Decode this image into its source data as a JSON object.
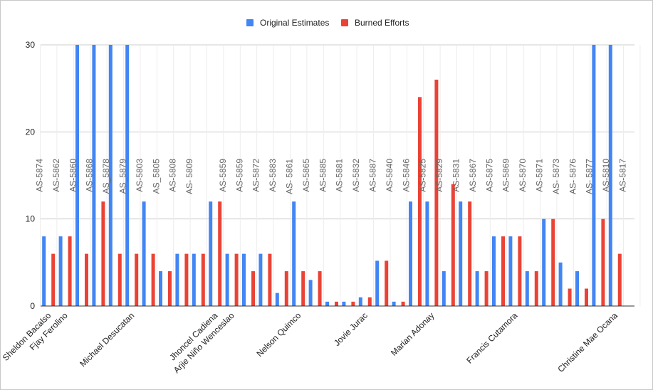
{
  "chart_data": {
    "type": "bar",
    "title": "",
    "xlabel": "",
    "ylabel": "",
    "ylim": [
      0,
      30
    ],
    "yticks": [
      0,
      10,
      20,
      30
    ],
    "grid": true,
    "legend_position": "top-center",
    "colors": {
      "Original Estimates": "#4285f4",
      "Burned Efforts": "#ea4335"
    },
    "series": [
      {
        "name": "Original Estimates",
        "values": [
          8,
          8,
          30,
          30,
          30,
          30,
          12,
          4,
          6,
          6,
          12,
          6,
          6,
          6,
          1.5,
          12,
          3,
          0.5,
          0.5,
          1,
          5.2,
          0.5,
          12,
          12,
          4,
          12,
          4,
          8,
          8,
          4,
          10,
          5,
          4,
          30,
          30
        ]
      },
      {
        "name": "Burned Efforts",
        "values": [
          6,
          8,
          6,
          12,
          6,
          6,
          6,
          4,
          6,
          6,
          12,
          6,
          4,
          6,
          4,
          4,
          4,
          0.5,
          0.5,
          1,
          5.2,
          0.5,
          24,
          26,
          14,
          12,
          4,
          8,
          8,
          4,
          10,
          2,
          2,
          10,
          6
        ]
      }
    ],
    "task_labels": [
      {
        "slot": 0,
        "text": "AS-5874"
      },
      {
        "slot": 1,
        "text": "AS-5862"
      },
      {
        "slot": 2,
        "text": "AS-5860"
      },
      {
        "slot": 3,
        "text": "AS-5868"
      },
      {
        "slot": 4,
        "text": "AS_5878"
      },
      {
        "slot": 5,
        "text": "AS_5879"
      },
      {
        "slot": 6,
        "text": "AS-5803"
      },
      {
        "slot": 7,
        "text": "AS_5805"
      },
      {
        "slot": 8,
        "text": "AS-5808"
      },
      {
        "slot": 9,
        "text": "AS- 5809"
      },
      {
        "slot": 11,
        "text": "AS-5859"
      },
      {
        "slot": 12,
        "text": "AS-5859"
      },
      {
        "slot": 13,
        "text": "AS-5872"
      },
      {
        "slot": 14,
        "text": "AS-5883"
      },
      {
        "slot": 15,
        "text": "AS- 5861"
      },
      {
        "slot": 16,
        "text": "AS-5865"
      },
      {
        "slot": 17,
        "text": "AS-5885"
      },
      {
        "slot": 18,
        "text": "AS-5881"
      },
      {
        "slot": 19,
        "text": "AS-5832"
      },
      {
        "slot": 20,
        "text": "AS-5887"
      },
      {
        "slot": 21,
        "text": "AS-5840"
      },
      {
        "slot": 22,
        "text": "AS-5846"
      },
      {
        "slot": 23,
        "text": "AS-5825"
      },
      {
        "slot": 24,
        "text": "AS-5829"
      },
      {
        "slot": 25,
        "text": "AS-5831"
      },
      {
        "slot": 26,
        "text": "AS-5867"
      },
      {
        "slot": 27,
        "text": "AS-5875"
      },
      {
        "slot": 28,
        "text": "AS-5869"
      },
      {
        "slot": 29,
        "text": "AS-5870"
      },
      {
        "slot": 30,
        "text": "AS-5871"
      },
      {
        "slot": 31,
        "text": "AS- 5873"
      },
      {
        "slot": 32,
        "text": "AS- 5876"
      },
      {
        "slot": 33,
        "text": "AS- 5877"
      },
      {
        "slot": 34,
        "text": "AS-5810"
      },
      {
        "slot": 35,
        "text": "AS-5817"
      }
    ],
    "x_labels": [
      {
        "slot": 0,
        "text": "Sheldon Bacalso"
      },
      {
        "slot": 1,
        "text": "Fjay Ferolino"
      },
      {
        "slot": 5,
        "text": "Michael Desucatan"
      },
      {
        "slot": 10,
        "text": "Jhoncel Cadiena"
      },
      {
        "slot": 11,
        "text": "Arjie Niño Wenceslao"
      },
      {
        "slot": 15,
        "text": "Nelson Quimco"
      },
      {
        "slot": 19,
        "text": "Jovie Jurac"
      },
      {
        "slot": 23,
        "text": "Marian Adonay"
      },
      {
        "slot": 28,
        "text": "Francis Cutamora"
      },
      {
        "slot": 34,
        "text": "Christine Mae Ocana"
      }
    ]
  }
}
